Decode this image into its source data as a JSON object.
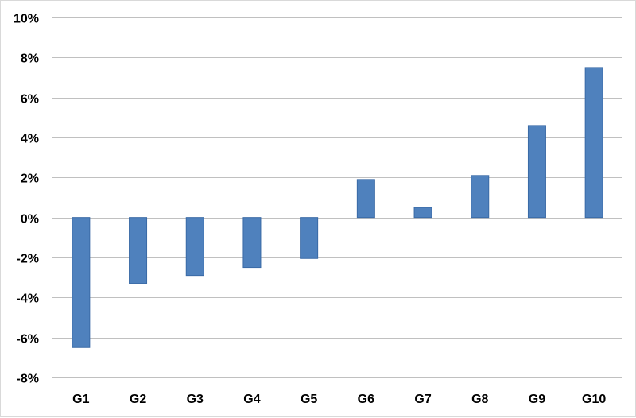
{
  "chart_data": {
    "type": "bar",
    "title": "",
    "xlabel": "",
    "ylabel": "",
    "categories": [
      "G1",
      "G2",
      "G3",
      "G4",
      "G5",
      "G6",
      "G7",
      "G8",
      "G9",
      "G10"
    ],
    "values": [
      -6.5,
      -3.3,
      -2.9,
      -2.5,
      -2.05,
      1.9,
      0.5,
      2.1,
      4.6,
      7.5
    ],
    "ylim": [
      -8,
      10
    ],
    "y_ticks": [
      -8,
      -6,
      -4,
      -2,
      0,
      2,
      4,
      6,
      8,
      10
    ],
    "y_tick_format": "percent",
    "grid": true,
    "legend": "none",
    "bar_color": "#4f81bd"
  }
}
